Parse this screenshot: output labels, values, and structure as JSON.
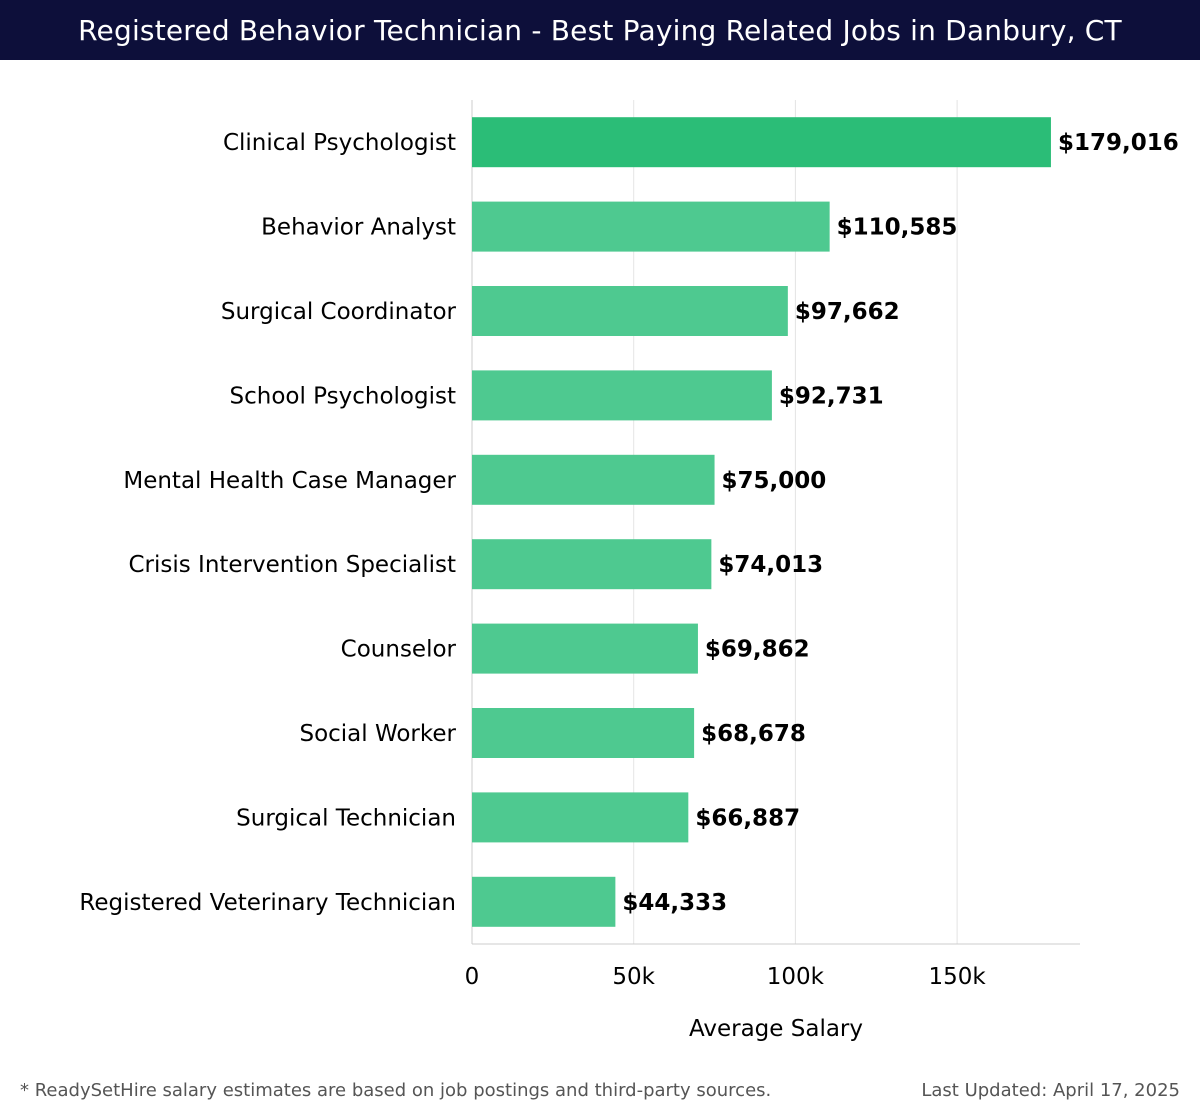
{
  "header": {
    "title": "Registered Behavior Technician - Best Paying Related Jobs in Danbury, CT"
  },
  "chart_data": {
    "type": "bar",
    "orientation": "horizontal",
    "categories": [
      "Clinical Psychologist",
      "Behavior Analyst",
      "Surgical Coordinator",
      "School Psychologist",
      "Mental Health Case Manager",
      "Crisis Intervention Specialist",
      "Counselor",
      "Social Worker",
      "Surgical Technician",
      "Registered Veterinary Technician"
    ],
    "values": [
      179016,
      110585,
      97662,
      92731,
      75000,
      74013,
      69862,
      68678,
      66887,
      44333
    ],
    "value_labels": [
      "$179,016",
      "$110,585",
      "$97,662",
      "$92,731",
      "$75,000",
      "$74,013",
      "$69,862",
      "$68,678",
      "$66,887",
      "$44,333"
    ],
    "xlabel": "Average Salary",
    "ylabel": "",
    "xlim": [
      0,
      188000
    ],
    "xticks": [
      0,
      50000,
      100000,
      150000
    ],
    "xtick_labels": [
      "0",
      "50k",
      "100k",
      "150k"
    ],
    "grid": true,
    "colors": {
      "top_bar": "#2bbd77",
      "bars": "#4ec990",
      "grid": "#e4e4e4",
      "axis": "#cccccc",
      "label": "#000000"
    }
  },
  "footer": {
    "note": "* ReadySetHire salary estimates are based on job postings and third-party sources.",
    "updated": "Last Updated: April 17, 2025"
  }
}
